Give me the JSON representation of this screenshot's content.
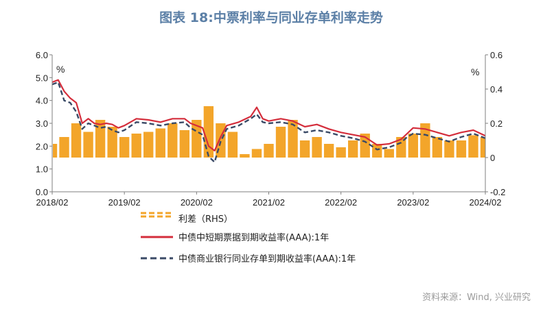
{
  "chart_data": {
    "type": "line",
    "title": "图表 18:中票利率与同业存单利率走势",
    "left_unit": "%",
    "right_unit": "%",
    "left_axis": {
      "ylim": [
        0,
        6
      ],
      "ticks": [
        "6.0",
        "5.0",
        "4.0",
        "3.0",
        "2.0",
        "1.0",
        "0.0"
      ]
    },
    "right_axis": {
      "ylim": [
        -0.2,
        0.6
      ],
      "ticks": [
        "0.6",
        "0.4",
        "0.2",
        "0",
        "-0.2"
      ]
    },
    "x_ticks": [
      "2018/02",
      "2019/02",
      "2020/02",
      "2021/02",
      "2022/02",
      "2023/02",
      "2024/02"
    ],
    "x_range": [
      "2018-02",
      "2024-02"
    ],
    "grid": false,
    "series": [
      {
        "name": "利差（RHS）",
        "kind": "bar",
        "axis": "right",
        "color": "#f3a52a",
        "x": [
          "2018-02",
          "2018-04",
          "2018-06",
          "2018-08",
          "2018-10",
          "2018-12",
          "2019-02",
          "2019-04",
          "2019-06",
          "2019-08",
          "2019-10",
          "2019-12",
          "2020-02",
          "2020-04",
          "2020-06",
          "2020-08",
          "2020-10",
          "2020-12",
          "2021-02",
          "2021-04",
          "2021-06",
          "2021-08",
          "2021-10",
          "2021-12",
          "2022-02",
          "2022-04",
          "2022-06",
          "2022-08",
          "2022-10",
          "2022-12",
          "2023-02",
          "2023-04",
          "2023-06",
          "2023-08",
          "2023-10",
          "2023-12",
          "2024-02"
        ],
        "values": [
          0.08,
          0.12,
          0.2,
          0.15,
          0.22,
          0.18,
          0.12,
          0.14,
          0.15,
          0.17,
          0.2,
          0.16,
          0.22,
          0.3,
          0.2,
          0.15,
          0.02,
          0.05,
          0.08,
          0.18,
          0.22,
          0.1,
          0.12,
          0.08,
          0.06,
          0.1,
          0.14,
          0.08,
          0.05,
          0.12,
          0.14,
          0.2,
          0.12,
          0.1,
          0.1,
          0.13,
          0.12
        ]
      },
      {
        "name": "中债中短期票据到期收益率(AAA):1年",
        "kind": "line",
        "axis": "left",
        "color": "#d42d3b",
        "x": [
          "2018-02",
          "2018-03",
          "2018-04",
          "2018-05",
          "2018-06",
          "2018-07",
          "2018-08",
          "2018-09",
          "2018-10",
          "2018-11",
          "2018-12",
          "2019-01",
          "2019-02",
          "2019-04",
          "2019-06",
          "2019-08",
          "2019-10",
          "2019-12",
          "2020-01",
          "2020-03",
          "2020-04",
          "2020-05",
          "2020-06",
          "2020-07",
          "2020-09",
          "2020-11",
          "2020-12",
          "2021-01",
          "2021-02",
          "2021-04",
          "2021-06",
          "2021-08",
          "2021-10",
          "2021-12",
          "2022-02",
          "2022-04",
          "2022-06",
          "2022-08",
          "2022-10",
          "2022-12",
          "2023-01",
          "2023-02",
          "2023-04",
          "2023-06",
          "2023-08",
          "2023-10",
          "2023-12",
          "2024-02"
        ],
        "values": [
          4.8,
          4.9,
          4.4,
          4.1,
          3.9,
          3.0,
          3.2,
          3.0,
          2.95,
          3.0,
          2.95,
          2.8,
          2.9,
          3.2,
          3.15,
          3.05,
          3.2,
          3.2,
          3.0,
          2.8,
          2.0,
          1.8,
          2.4,
          2.9,
          3.05,
          3.3,
          3.7,
          3.2,
          3.1,
          3.2,
          3.1,
          2.85,
          2.95,
          2.75,
          2.6,
          2.5,
          2.4,
          2.05,
          2.1,
          2.3,
          2.55,
          2.8,
          2.75,
          2.6,
          2.45,
          2.6,
          2.7,
          2.45
        ]
      },
      {
        "name": "中债商业银行同业存单到期收益率(AAA):1年",
        "kind": "dashed",
        "axis": "left",
        "color": "#3a4a66",
        "x": [
          "2018-02",
          "2018-03",
          "2018-04",
          "2018-05",
          "2018-06",
          "2018-07",
          "2018-08",
          "2018-09",
          "2018-10",
          "2018-11",
          "2018-12",
          "2019-01",
          "2019-02",
          "2019-04",
          "2019-06",
          "2019-08",
          "2019-10",
          "2019-12",
          "2020-01",
          "2020-03",
          "2020-04",
          "2020-05",
          "2020-06",
          "2020-07",
          "2020-09",
          "2020-11",
          "2020-12",
          "2021-01",
          "2021-02",
          "2021-04",
          "2021-06",
          "2021-08",
          "2021-10",
          "2021-12",
          "2022-02",
          "2022-04",
          "2022-06",
          "2022-08",
          "2022-10",
          "2022-12",
          "2023-01",
          "2023-02",
          "2023-04",
          "2023-06",
          "2023-08",
          "2023-10",
          "2023-12",
          "2024-02"
        ],
        "values": [
          4.7,
          4.8,
          4.0,
          3.9,
          3.5,
          2.75,
          3.0,
          2.9,
          2.8,
          2.85,
          2.7,
          2.6,
          2.7,
          3.05,
          3.0,
          2.9,
          3.0,
          3.05,
          2.8,
          2.5,
          1.55,
          1.3,
          2.2,
          2.75,
          2.9,
          3.2,
          3.4,
          3.05,
          3.0,
          3.05,
          2.95,
          2.6,
          2.7,
          2.6,
          2.45,
          2.35,
          2.2,
          1.85,
          1.95,
          2.15,
          2.4,
          2.55,
          2.5,
          2.35,
          2.2,
          2.4,
          2.55,
          2.35
        ]
      }
    ],
    "legend_position": "bottom"
  },
  "source": "资料来源：Wind, 兴业研究"
}
